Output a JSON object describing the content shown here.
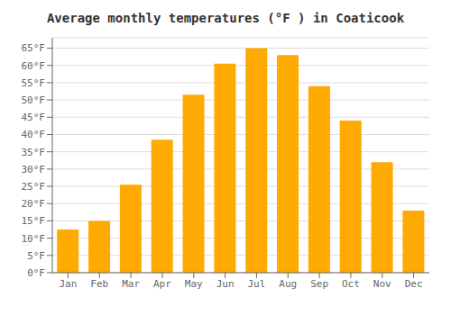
{
  "chart_data": {
    "type": "bar",
    "title": "Average monthly temperatures (°F ) in Coaticook",
    "categories": [
      "Jan",
      "Feb",
      "Mar",
      "Apr",
      "May",
      "Jun",
      "Jul",
      "Aug",
      "Sep",
      "Oct",
      "Nov",
      "Dec"
    ],
    "values": [
      12.5,
      15.0,
      25.5,
      38.5,
      51.5,
      60.5,
      65.0,
      63.0,
      54.0,
      44.0,
      32.0,
      18.0
    ],
    "color": "#FFAA00",
    "ylim": [
      0,
      68
    ],
    "yticks": [
      {
        "value": 0,
        "label": "0°F"
      },
      {
        "value": 5,
        "label": "5°F"
      },
      {
        "value": 10,
        "label": "10°F"
      },
      {
        "value": 15,
        "label": "15°F"
      },
      {
        "value": 20,
        "label": "20°F"
      },
      {
        "value": 25,
        "label": "25°F"
      },
      {
        "value": 30,
        "label": "30°F"
      },
      {
        "value": 35,
        "label": "35°F"
      },
      {
        "value": 40,
        "label": "40°F"
      },
      {
        "value": 45,
        "label": "45°F"
      },
      {
        "value": 50,
        "label": "50°F"
      },
      {
        "value": 55,
        "label": "55°F"
      },
      {
        "value": 60,
        "label": "60°F"
      },
      {
        "value": 65,
        "label": "65°F"
      }
    ],
    "grid": true
  }
}
